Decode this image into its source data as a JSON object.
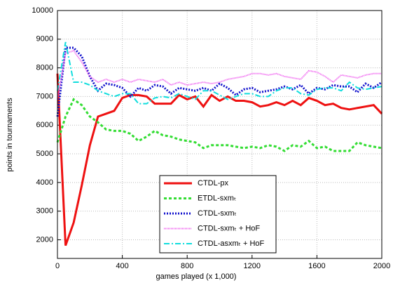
{
  "chart_data": {
    "type": "line",
    "xlabel": "games played (x 1,000)",
    "ylabel": "points in tournaments",
    "x": [
      0,
      50,
      100,
      150,
      200,
      250,
      300,
      350,
      400,
      450,
      500,
      550,
      600,
      650,
      700,
      750,
      800,
      850,
      900,
      950,
      1000,
      1050,
      1100,
      1150,
      1200,
      1250,
      1300,
      1350,
      1400,
      1450,
      1500,
      1550,
      1600,
      1650,
      1700,
      1750,
      1800,
      1850,
      1900,
      1950,
      2000
    ],
    "xlim": [
      0,
      2000
    ],
    "xticks": [
      0,
      400,
      800,
      1200,
      1600,
      2000
    ],
    "ylim": [
      1350,
      10000
    ],
    "yticks": [
      2000,
      3000,
      4000,
      5000,
      6000,
      7000,
      8000,
      9000,
      10000
    ],
    "grid": true,
    "legend": "lower center",
    "series": [
      {
        "name": "CTDL-px",
        "color": "#ee1111",
        "width": 3,
        "dash": "none",
        "values": [
          7800,
          1800,
          2600,
          3900,
          5300,
          6300,
          6400,
          6500,
          6950,
          7050,
          7050,
          7000,
          6750,
          6750,
          6750,
          7050,
          6900,
          7000,
          6650,
          7050,
          6850,
          7000,
          6850,
          6850,
          6800,
          6650,
          6700,
          6800,
          6700,
          6850,
          6700,
          6950,
          6850,
          6700,
          6750,
          6600,
          6550,
          6600,
          6650,
          6700,
          6400
        ]
      },
      {
        "name": "ETDL-sxmₜ",
        "color": "#33dd33",
        "width": 3,
        "dash": "4,3",
        "values": [
          5400,
          6300,
          6900,
          6700,
          6300,
          6100,
          5850,
          5800,
          5800,
          5700,
          5450,
          5600,
          5800,
          5650,
          5600,
          5500,
          5450,
          5400,
          5200,
          5300,
          5300,
          5300,
          5250,
          5200,
          5250,
          5200,
          5300,
          5250,
          5100,
          5300,
          5250,
          5450,
          5200,
          5250,
          5100,
          5100,
          5100,
          5400,
          5300,
          5250,
          5200
        ]
      },
      {
        "name": "CTDL-sxmₜ",
        "color": "#1111cc",
        "width": 3,
        "dash": "2,2",
        "values": [
          6300,
          8700,
          8700,
          8400,
          7700,
          7200,
          7450,
          7400,
          7300,
          7000,
          7300,
          7200,
          7400,
          7350,
          7100,
          7300,
          7250,
          7200,
          7300,
          7200,
          7450,
          7300,
          7050,
          7250,
          7300,
          7150,
          7200,
          7250,
          7350,
          7250,
          7400,
          7100,
          7300,
          7250,
          7400,
          7350,
          7350,
          7150,
          7450,
          7300,
          7500
        ]
      },
      {
        "name": "CTDL-sxmₜ + HoF",
        "color": "#ee55ee",
        "width": 2,
        "dash": "1,1",
        "values": [
          6900,
          8500,
          8600,
          8200,
          7700,
          7500,
          7600,
          7500,
          7600,
          7500,
          7600,
          7550,
          7500,
          7600,
          7400,
          7500,
          7400,
          7450,
          7500,
          7450,
          7500,
          7600,
          7650,
          7700,
          7800,
          7800,
          7750,
          7800,
          7700,
          7650,
          7600,
          7900,
          7850,
          7700,
          7500,
          7750,
          7700,
          7650,
          7750,
          7800,
          7800
        ]
      },
      {
        "name": "CTDL-asxmₜ + HoF",
        "color": "#11dddd",
        "width": 2,
        "dash": "8,3,2,3",
        "values": [
          7200,
          8900,
          7500,
          7500,
          7400,
          7200,
          7100,
          7000,
          7100,
          7100,
          6750,
          6750,
          6950,
          7000,
          6950,
          7100,
          7000,
          6900,
          7200,
          7200,
          7050,
          6900,
          7000,
          7100,
          7100,
          7000,
          7000,
          7200,
          7300,
          7300,
          7100,
          7050,
          7250,
          7300,
          7300,
          7200,
          7500,
          7300,
          7250,
          7300,
          7350
        ]
      }
    ]
  }
}
